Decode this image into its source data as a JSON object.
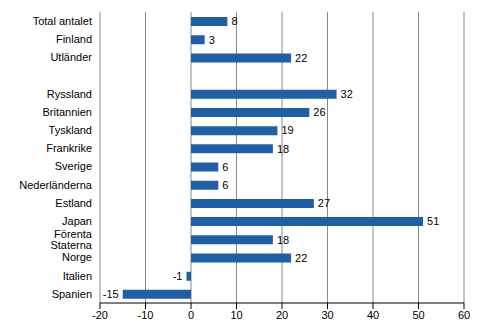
{
  "chart_data": {
    "type": "bar",
    "orientation": "horizontal",
    "categories": [
      "Total antalet",
      "Finland",
      "Utländer",
      null,
      "Ryssland",
      "Britannien",
      "Tyskland",
      "Frankrike",
      "Sverige",
      "Nederländerna",
      "Estland",
      "Japan",
      "Förenta Staterna",
      "Norge",
      "Italien",
      "Spanien"
    ],
    "values": [
      8,
      3,
      22,
      null,
      32,
      26,
      19,
      18,
      6,
      6,
      27,
      51,
      18,
      22,
      -1,
      -15
    ],
    "color": "#1f5fa8",
    "xlim": [
      -20,
      60
    ],
    "xticks": [
      -20,
      -10,
      0,
      10,
      20,
      30,
      40,
      50,
      60
    ],
    "grid": true,
    "data_labels": true
  }
}
